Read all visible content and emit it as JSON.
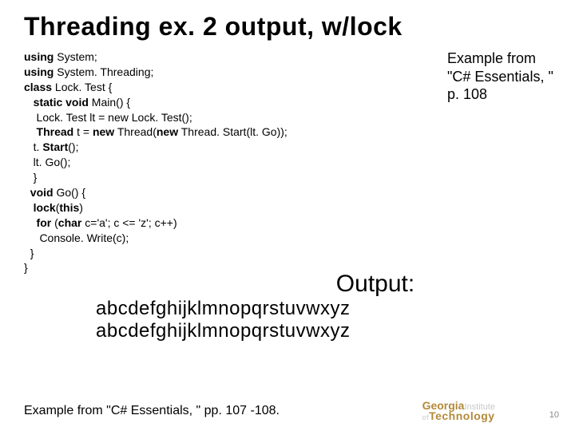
{
  "title": "Threading ex. 2 output, w/lock",
  "code": {
    "l1a": "using",
    "l1b": " System;",
    "l2a": "using",
    "l2b": " System. Threading;",
    "l3a": "class",
    "l3b": " Lock. Test {",
    "l4a": "   static void",
    "l4b": " Main() {",
    "l5": "    Lock. Test lt = new Lock. Test();",
    "l6a": "    Thread",
    "l6b": " t = ",
    "l6c": "new",
    "l6d": " Thread(",
    "l6e": "new",
    "l6f": " Thread. Start(lt. Go));",
    "l7a": "   t. ",
    "l7b": "Start",
    "l7c": "();",
    "l8": "   lt. Go();",
    "l9": "   }",
    "l10a": "  void",
    "l10b": " Go() {",
    "l11a": "   lock",
    "l11b": "(",
    "l11c": "this",
    "l11d": ")",
    "l12a": "    for",
    "l12b": " (",
    "l12c": "char",
    "l12d": " c='a'; c <= 'z'; c++)",
    "l13": "     Console. Write(c);",
    "l14": "  }",
    "l15": "}"
  },
  "example_note": {
    "l1": "Example from",
    "l2": "\"C# Essentials, \"",
    "l3": "p. 108"
  },
  "output": {
    "label": "Output:",
    "line1": "abcdefghijklmnopqrstuvwxyz",
    "line2": "abcdefghijklmnopqrstuvwxyz"
  },
  "footer_cite": "Example from \"C# Essentials, \" pp. 107 -108.",
  "logo": {
    "line1a": "Georgia",
    "line1b": "Institute",
    "line2a": "of",
    "line2b": "Technology"
  },
  "page_num": "10"
}
